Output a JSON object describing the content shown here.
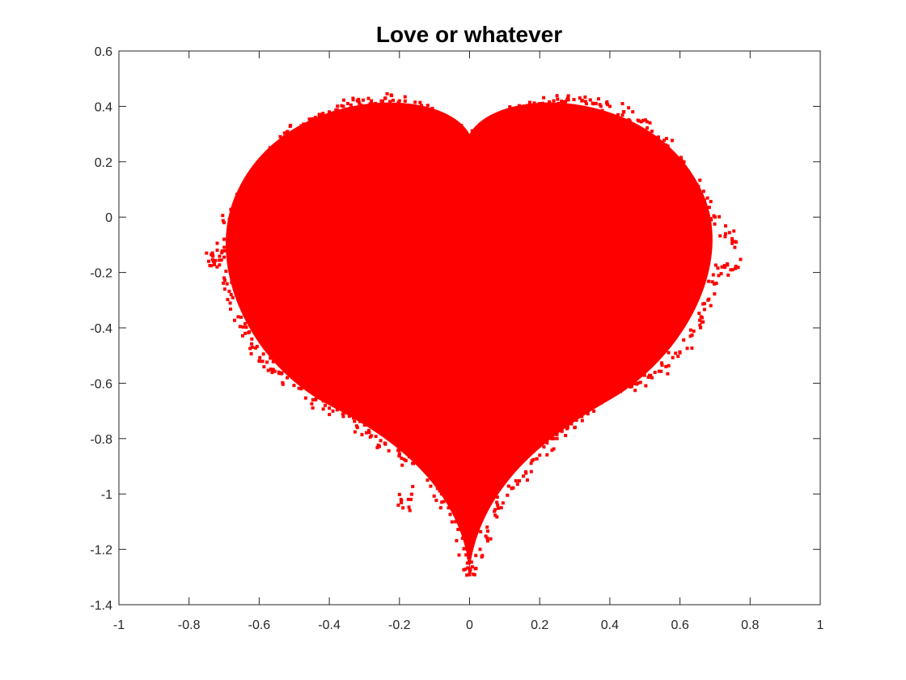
{
  "chart_data": {
    "type": "scatter",
    "title": "Love or whatever",
    "xlabel": "",
    "ylabel": "",
    "xlim": [
      -1,
      1
    ],
    "ylim": [
      -1.4,
      0.6
    ],
    "x_ticks": [
      -1,
      -0.8,
      -0.6,
      -0.4,
      -0.2,
      0,
      0.2,
      0.4,
      0.6,
      0.8,
      1
    ],
    "x_tick_labels": [
      "-1",
      "-0.8",
      "-0.6",
      "-0.4",
      "-0.2",
      "0",
      "0.2",
      "0.4",
      "0.6",
      "0.8",
      "1"
    ],
    "y_ticks": [
      -1.4,
      -1.2,
      -1,
      -0.8,
      -0.6,
      -0.4,
      -0.2,
      0,
      0.2,
      0.4,
      0.6
    ],
    "y_tick_labels": [
      "-1.4",
      "-1.2",
      "-1",
      "-0.8",
      "-0.6",
      "-0.4",
      "-0.2",
      "0",
      "0.2",
      "0.4",
      "0.6"
    ],
    "grid": false,
    "legend": "none",
    "marker": "square",
    "colors": {
      "points": "#ff0000",
      "axes": "#262626",
      "background": "#ffffff"
    },
    "series": [
      {
        "shape": "heart",
        "x_extent": [
          -0.75,
          0.76
        ],
        "y_extent": [
          -1.29,
          0.43
        ],
        "points": [
          [
            -0.75,
            -0.13
          ],
          [
            -0.73,
            -0.16
          ],
          [
            -0.72,
            -0.18
          ],
          [
            -0.7,
            -0.08
          ],
          [
            -0.7,
            -0.22
          ],
          [
            -0.68,
            -0.28
          ],
          [
            -0.66,
            -0.36
          ],
          [
            -0.64,
            -0.42
          ],
          [
            -0.62,
            -0.47
          ],
          [
            -0.6,
            -0.52
          ],
          [
            -0.56,
            -0.55
          ],
          [
            -0.52,
            -0.58
          ],
          [
            -0.48,
            -0.62
          ],
          [
            -0.44,
            -0.66
          ],
          [
            -0.4,
            -0.69
          ],
          [
            -0.36,
            -0.72
          ],
          [
            -0.32,
            -0.76
          ],
          [
            -0.28,
            -0.79
          ],
          [
            -0.24,
            -0.82
          ],
          [
            -0.2,
            -0.86
          ],
          [
            -0.16,
            -0.89
          ],
          [
            -0.19,
            -1.05
          ],
          [
            -0.12,
            -0.95
          ],
          [
            -0.08,
            -1.0
          ],
          [
            -0.06,
            -1.05
          ],
          [
            -0.04,
            -1.1
          ],
          [
            -0.02,
            -1.16
          ],
          [
            -0.01,
            -1.22
          ],
          [
            0.0,
            -1.27
          ],
          [
            0.01,
            -1.29
          ],
          [
            0.03,
            -1.2
          ],
          [
            0.05,
            -1.12
          ],
          [
            0.08,
            -1.04
          ],
          [
            0.12,
            -0.98
          ],
          [
            0.16,
            -0.92
          ],
          [
            0.2,
            -0.86
          ],
          [
            0.24,
            -0.8
          ],
          [
            0.28,
            -0.76
          ],
          [
            0.32,
            -0.72
          ],
          [
            0.36,
            -0.68
          ],
          [
            0.4,
            -0.65
          ],
          [
            0.44,
            -0.62
          ],
          [
            0.48,
            -0.6
          ],
          [
            0.52,
            -0.58
          ],
          [
            0.56,
            -0.54
          ],
          [
            0.6,
            -0.49
          ],
          [
            0.63,
            -0.43
          ],
          [
            0.66,
            -0.36
          ],
          [
            0.68,
            -0.3
          ],
          [
            0.7,
            -0.24
          ],
          [
            0.72,
            -0.18
          ],
          [
            0.75,
            -0.19
          ],
          [
            0.76,
            -0.09
          ],
          [
            0.73,
            -0.06
          ],
          [
            0.7,
            0.0
          ],
          [
            0.67,
            0.06
          ],
          [
            0.64,
            0.13
          ],
          [
            0.6,
            0.2
          ],
          [
            0.56,
            0.26
          ],
          [
            0.52,
            0.31
          ],
          [
            0.48,
            0.35
          ],
          [
            0.44,
            0.38
          ],
          [
            0.4,
            0.4
          ],
          [
            0.36,
            0.41
          ],
          [
            0.32,
            0.42
          ],
          [
            0.28,
            0.43
          ],
          [
            0.24,
            0.42
          ],
          [
            0.2,
            0.41
          ],
          [
            0.16,
            0.39
          ],
          [
            0.12,
            0.38
          ],
          [
            0.08,
            0.35
          ],
          [
            0.04,
            0.32
          ],
          [
            0.0,
            0.29
          ],
          [
            -0.04,
            0.32
          ],
          [
            -0.08,
            0.35
          ],
          [
            -0.12,
            0.38
          ],
          [
            -0.16,
            0.4
          ],
          [
            -0.2,
            0.42
          ],
          [
            -0.24,
            0.43
          ],
          [
            -0.28,
            0.42
          ],
          [
            -0.32,
            0.42
          ],
          [
            -0.36,
            0.4
          ],
          [
            -0.4,
            0.38
          ],
          [
            -0.44,
            0.36
          ],
          [
            -0.48,
            0.33
          ],
          [
            -0.52,
            0.29
          ],
          [
            -0.56,
            0.23
          ],
          [
            -0.6,
            0.17
          ],
          [
            -0.64,
            0.1
          ],
          [
            -0.67,
            0.03
          ],
          [
            -0.7,
            -0.02
          ],
          [
            -0.02,
            0.0
          ],
          [
            0.0,
            -0.4
          ],
          [
            -0.3,
            0.1
          ],
          [
            0.3,
            0.1
          ],
          [
            -0.4,
            -0.3
          ],
          [
            0.4,
            -0.3
          ],
          [
            -0.2,
            -0.6
          ],
          [
            0.2,
            -0.6
          ],
          [
            0.0,
            -0.9
          ]
        ]
      }
    ]
  }
}
